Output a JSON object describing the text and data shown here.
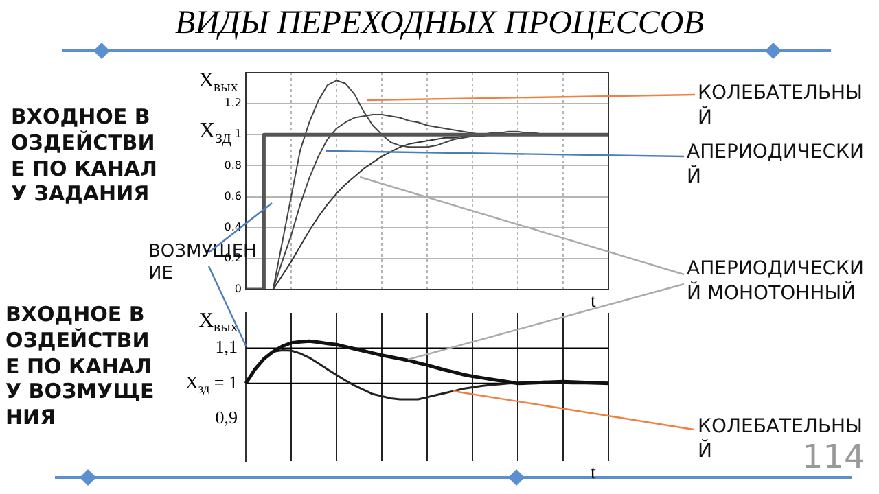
{
  "chart_data": [
    {
      "type": "line",
      "title": "ВИДЫ ПЕРЕХОДНЫХ ПРОЦЕССОВ",
      "xlabel": "t",
      "ylabel": "X$_{вых}$",
      "ylim": [
        0,
        1.4
      ],
      "categories": [
        null,
        null,
        null,
        null,
        null,
        null,
        null,
        null,
        null,
        null,
        null,
        null,
        null,
        null,
        null,
        null,
        null,
        null,
        null,
        null,
        null,
        null,
        null,
        null,
        null,
        null,
        null,
        null,
        null,
        null,
        null,
        null,
        null,
        null,
        null,
        null,
        null,
        null,
        null,
        null,
        null
      ],
      "yticks": [
        0,
        0.2,
        0.4,
        0.6,
        0.8,
        1,
        1.2
      ],
      "grid": true,
      "tick_labels": "y",
      "marker": "none",
      "series": [
        {
          "type": "step",
          "color": "#555555",
          "values": [
            0,
            0,
            0,
            1,
            1,
            1,
            1,
            1,
            1,
            1,
            1,
            1,
            1,
            1,
            1,
            1,
            1,
            1,
            1,
            1,
            1,
            1,
            1,
            1,
            1,
            1,
            1,
            1,
            1,
            1,
            1,
            1,
            1,
            1,
            1,
            1,
            1,
            1,
            1,
            1,
            1
          ]
        },
        {
          "color": "#444444",
          "values": [
            0,
            0,
            0,
            0,
            0.3,
            0.6,
            0.9,
            1.08,
            1.22,
            1.32,
            1.35,
            1.33,
            1.26,
            1.15,
            1.06,
            1.0,
            0.95,
            0.93,
            0.92,
            0.92,
            0.92,
            0.93,
            0.95,
            0.97,
            0.98,
            0.99,
            1.0,
            1.01,
            1.01,
            1.02,
            1.02,
            1.01,
            1.01,
            1.0,
            1.0,
            1,
            1,
            1,
            1,
            1,
            1
          ]
        },
        {
          "color": "#444444",
          "values": [
            0,
            0,
            0,
            0,
            0.18,
            0.35,
            0.55,
            0.72,
            0.86,
            0.97,
            1.04,
            1.08,
            1.11,
            1.12,
            1.13,
            1.13,
            1.12,
            1.11,
            1.09,
            1.08,
            1.06,
            1.05,
            1.04,
            1.03,
            1.02,
            1.01,
            1,
            1,
            1,
            1,
            1,
            1,
            1,
            1,
            1,
            1,
            1,
            1,
            1,
            1,
            1
          ]
        },
        {
          "color": "#333333",
          "values": [
            0,
            0,
            0,
            0,
            0.09,
            0.18,
            0.28,
            0.38,
            0.47,
            0.55,
            0.62,
            0.68,
            0.73,
            0.78,
            0.82,
            0.86,
            0.89,
            0.92,
            0.94,
            0.95,
            0.96,
            0.97,
            0.98,
            0.98,
            0.99,
            0.99,
            0.99,
            1,
            1,
            1,
            1,
            1,
            1,
            1,
            1,
            1,
            1,
            1,
            1,
            1,
            1
          ]
        }
      ],
      "annotations": [
        "X$_{зд}$",
        "ВХОДНОЕ ВОЗДЕЙСТВИЕ ПО КАНАЛУ ЗАДАНИЯ",
        "ВОЗМУЩЕНИЕ",
        "КОЛЕБАТЕЛЬНЫЙ",
        "АПЕРИОДИЧЕСКИЙ",
        "АПЕРИОДИЧЕСКИЙ МОНОТОННЫЙ",
        "114"
      ]
    },
    {
      "type": "line",
      "xlabel": "t",
      "ylabel": "X$_{вых}$",
      "ylim": [
        0.78,
        1.2
      ],
      "categories": [
        null,
        null,
        null,
        null,
        null,
        null,
        null,
        null,
        null,
        null,
        null,
        null,
        null,
        null,
        null,
        null,
        null,
        null,
        null,
        null,
        null,
        null,
        null,
        null,
        null,
        null,
        null,
        null,
        null,
        null,
        null,
        null,
        null,
        null,
        null,
        null,
        null,
        null,
        null,
        null,
        null
      ],
      "yticks": [
        {
          "value": 0.9,
          "label": "0,9"
        },
        {
          "value": 1,
          "label": "X$_{зд}$ = 1"
        },
        {
          "value": 1.1,
          "label": "1,1"
        }
      ],
      "grid": "x",
      "tick_labels": "y",
      "marker": "none",
      "ref_lines": [
        {
          "axis": "y",
          "value": 1.1
        },
        {
          "axis": "y",
          "value": 1
        }
      ],
      "series": [
        {
          "color": "#111111",
          "values": [
            1,
            1.04,
            1.07,
            1.09,
            1.105,
            1.115,
            1.118,
            1.12,
            1.117,
            1.113,
            1.11,
            1.104,
            1.098,
            1.092,
            1.086,
            1.08,
            1.075,
            1.07,
            1.065,
            1.058,
            1.052,
            1.045,
            1.038,
            1.032,
            1.025,
            1.02,
            1.016,
            1.012,
            1.008,
            1.004,
            1.0,
            1.001,
            1.002,
            1.003,
            1.004,
            1.005,
            1.004,
            1.003,
            1.002,
            1.001,
            1.0
          ]
        },
        {
          "color": "#222222",
          "values": [
            1,
            1.04,
            1.07,
            1.09,
            1.094,
            1.093,
            1.085,
            1.073,
            1.057,
            1.04,
            1.024,
            1.008,
            0.994,
            0.982,
            0.97,
            0.964,
            0.958,
            0.955,
            0.955,
            0.955,
            0.961,
            0.967,
            0.973,
            0.979,
            0.985,
            0.989,
            0.993,
            0.996,
            0.998,
            1.0,
            1.001,
            1.003,
            1.004,
            1.005,
            1.003,
            1.001,
            1.0,
            1.0,
            1.0,
            1.0,
            1.0
          ]
        }
      ],
      "annotations": [
        "ВХОДНОЕ ВОЗДЕЙСТВИЕ ПО КАНАЛУ ВОЗМУЩЕНИЯ",
        "КОЛЕБАТЕЛЬНЫЙ"
      ]
    }
  ]
}
